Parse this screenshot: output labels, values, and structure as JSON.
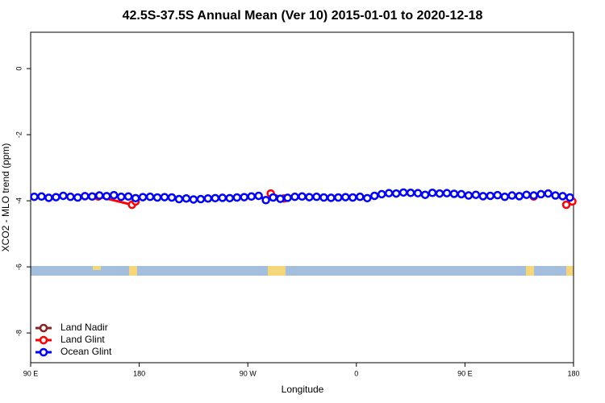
{
  "chart_data": {
    "type": "line",
    "title": "42.5S-37.5S Annual Mean (Ver 10)   2015-01-01 to 2020-12-18",
    "xlabel": "Longitude",
    "ylabel": "XCO2 - MLO trend (ppm)",
    "xlim": [
      90,
      540
    ],
    "ylim": [
      -8.9,
      1.1
    ],
    "xticks": [
      {
        "value": 90,
        "label": "90 E"
      },
      180,
      {
        "value": 270,
        "label": "90 W"
      },
      {
        "value": 360,
        "label": "0"
      },
      {
        "value": 450,
        "label": "90 E"
      },
      {
        "value": 540,
        "label": "180"
      }
    ],
    "yticks": [
      0,
      -2,
      -4,
      -6,
      -8
    ],
    "legend": "bottom-left",
    "series": [
      {
        "name": "Land Nadir",
        "color": "#8b2323",
        "x": [],
        "values": []
      },
      {
        "name": "Land Glint",
        "color": "#ff0000",
        "x": [
          146,
          174,
          177,
          null,
          289,
          300,
          null,
          507,
          null,
          534,
          539
        ],
        "values": [
          -3.87,
          -4.12,
          -4.02,
          null,
          -3.78,
          -3.93,
          null,
          -3.87,
          null,
          -4.12,
          -4.02
        ]
      },
      {
        "name": "Ocean Glint",
        "color": "#0000ff",
        "x": [
          93,
          99,
          105,
          111,
          117,
          123,
          129,
          135,
          141,
          147,
          153,
          159,
          165,
          171,
          177,
          183,
          189,
          195,
          201,
          207,
          213,
          219,
          225,
          231,
          237,
          243,
          249,
          255,
          261,
          267,
          273,
          279,
          285,
          291,
          297,
          303,
          309,
          315,
          321,
          327,
          333,
          339,
          345,
          351,
          357,
          363,
          369,
          375,
          381,
          387,
          393,
          399,
          405,
          411,
          417,
          423,
          429,
          435,
          441,
          447,
          453,
          459,
          465,
          471,
          477,
          483,
          489,
          495,
          501,
          507,
          513,
          519,
          525,
          531,
          537
        ],
        "values": [
          -3.88,
          -3.87,
          -3.91,
          -3.89,
          -3.85,
          -3.88,
          -3.9,
          -3.86,
          -3.87,
          -3.84,
          -3.86,
          -3.83,
          -3.88,
          -3.87,
          -3.92,
          -3.89,
          -3.88,
          -3.9,
          -3.89,
          -3.9,
          -3.95,
          -3.93,
          -3.96,
          -3.95,
          -3.93,
          -3.92,
          -3.91,
          -3.92,
          -3.9,
          -3.89,
          -3.87,
          -3.85,
          -3.98,
          -3.9,
          -3.94,
          -3.91,
          -3.88,
          -3.87,
          -3.89,
          -3.88,
          -3.9,
          -3.91,
          -3.9,
          -3.89,
          -3.9,
          -3.88,
          -3.92,
          -3.85,
          -3.8,
          -3.77,
          -3.78,
          -3.75,
          -3.76,
          -3.77,
          -3.82,
          -3.76,
          -3.78,
          -3.77,
          -3.79,
          -3.8,
          -3.84,
          -3.82,
          -3.86,
          -3.85,
          -3.83,
          -3.88,
          -3.84,
          -3.86,
          -3.82,
          -3.84,
          -3.8,
          -3.78,
          -3.84,
          -3.86,
          -3.9
        ]
      }
    ]
  }
}
